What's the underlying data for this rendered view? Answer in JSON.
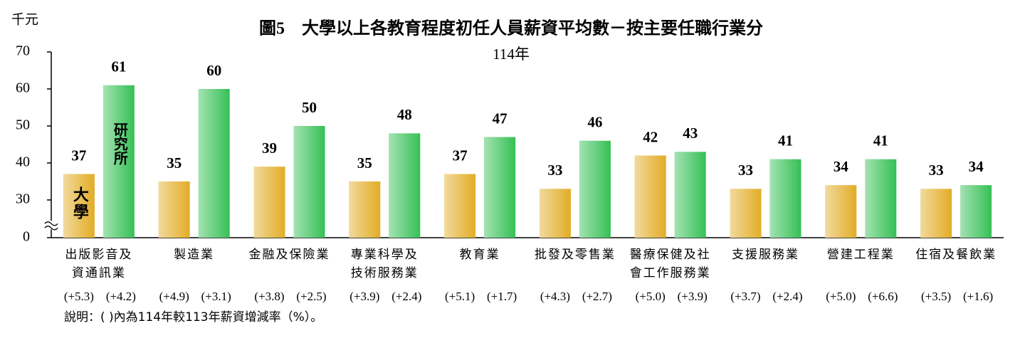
{
  "chart_data": {
    "type": "bar",
    "title": "圖5　大學以上各教育程度初任人員薪資平均數－按主要任職行業分",
    "subtitle": "114年",
    "y_unit": "千元",
    "note": "說明：( )內為114年較113年薪資增減率（%）。",
    "categories": [
      [
        "出版影音及",
        "資通訊業"
      ],
      [
        "製造業"
      ],
      [
        "金融及保險業"
      ],
      [
        "專業科學及",
        "技術服務業"
      ],
      [
        "教育業"
      ],
      [
        "批發及零售業"
      ],
      [
        "醫療保健及社",
        "會工作服務業"
      ],
      [
        "支援服務業"
      ],
      [
        "營建工程業"
      ],
      [
        "住宿及餐飲業"
      ]
    ],
    "series": [
      {
        "name": "大學",
        "color": "#e2ad26",
        "values": [
          37,
          35,
          39,
          35,
          37,
          33,
          42,
          33,
          34,
          33
        ],
        "change_labels": [
          "(+5.3)",
          "(+4.9)",
          "(+3.8)",
          "(+3.9)",
          "(+5.1)",
          "(+4.3)",
          "(+5.0)",
          "(+3.7)",
          "(+5.0)",
          "(+3.5)"
        ]
      },
      {
        "name": "研究所",
        "color": "#35c055",
        "values": [
          61,
          60,
          50,
          48,
          47,
          46,
          43,
          41,
          41,
          34
        ],
        "change_labels": [
          "(+4.2)",
          "(+3.1)",
          "(+2.5)",
          "(+2.4)",
          "(+1.7)",
          "(+2.7)",
          "(+3.9)",
          "(+2.4)",
          "(+6.6)",
          "(+1.6)"
        ]
      }
    ],
    "ylim": [
      0,
      70
    ],
    "yticks": [
      0,
      30,
      40,
      50,
      60,
      70
    ],
    "axis_break": [
      0,
      30
    ],
    "grid": false
  }
}
